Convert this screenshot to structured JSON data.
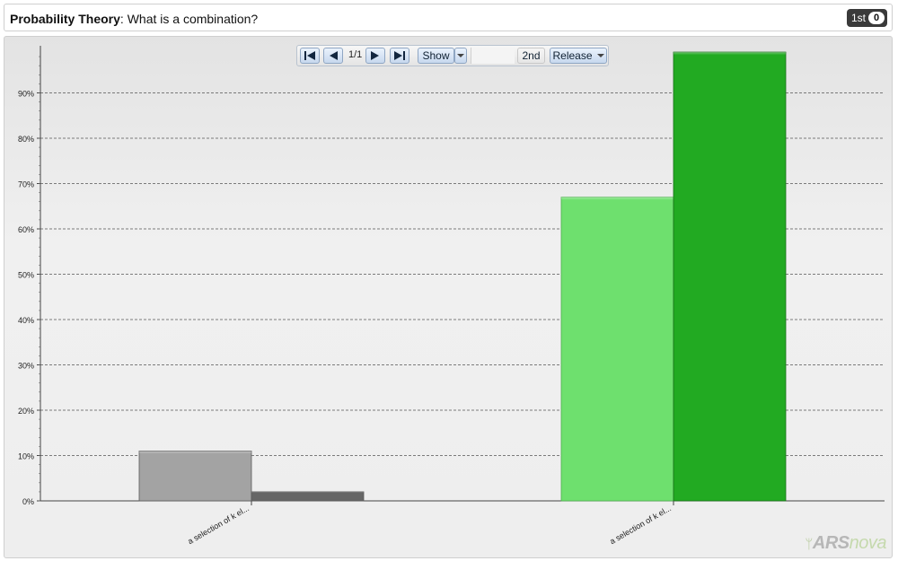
{
  "header": {
    "topic": "Probability Theory",
    "separator": ": ",
    "question": "What is a combination?",
    "round_label": "1st",
    "answer_count": "0"
  },
  "toolbar": {
    "page": "1/1",
    "show_label": "Show",
    "round2_label": "2nd",
    "release_label": "Release",
    "icons": [
      "first-page-icon",
      "prev-page-icon",
      "next-page-icon",
      "last-page-icon",
      "chevron-down-icon"
    ]
  },
  "logo": {
    "brand": "ARS",
    "suffix": "nova"
  },
  "chart_data": {
    "type": "bar",
    "categories": [
      "a selection of k el...",
      "a selection of k el..."
    ],
    "series": [
      {
        "values": [
          11,
          67
        ],
        "colors": [
          "#a3a3a3",
          "#6ee06e"
        ]
      },
      {
        "values": [
          2,
          99
        ],
        "colors": [
          "#666666",
          "#22aa22"
        ]
      }
    ],
    "ylim": [
      0,
      100
    ],
    "yticks": [
      0,
      10,
      20,
      30,
      40,
      50,
      60,
      70,
      80,
      90
    ],
    "tick_labels": [
      "0%",
      "10%",
      "20%",
      "30%",
      "40%",
      "50%",
      "60%",
      "70%",
      "80%",
      "90%"
    ],
    "grid": true
  }
}
